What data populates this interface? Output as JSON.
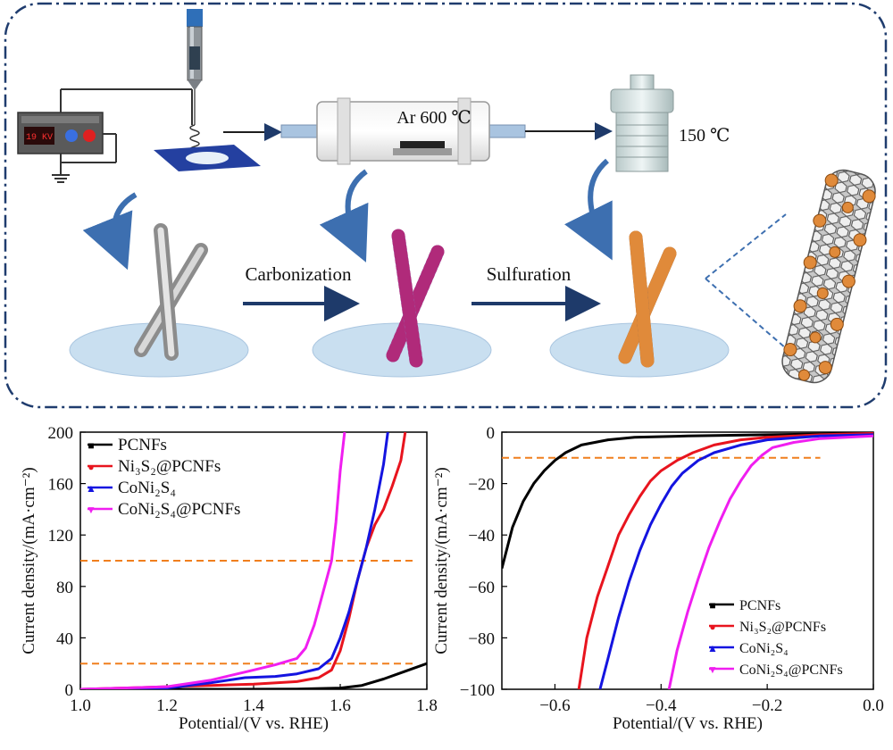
{
  "schematic": {
    "voltage_display": "19 KV",
    "furnace_label": "Ar 600 ℃",
    "autoclave_label": "150 ℃",
    "step1_label": "Carbonization",
    "step2_label": "Sulfuration",
    "colors": {
      "border": "#1f3c6e",
      "arrow": "#1e3a6a",
      "curved_arrow": "#3d6fb0",
      "disc": "#c9dff0",
      "pcnf_fiber": "#a9a9a9",
      "carbon_fiber": "#8a7bbd",
      "carbon_dots": "#b02a7a",
      "sulfide_fiber": "#8c6a55",
      "sulfide_particles": "#e08a3a"
    }
  },
  "chart_data": [
    {
      "type": "line",
      "panel": "left",
      "xlabel": "Potential/(V vs. RHE)",
      "ylabel": "Current density/(mA·cm⁻²)",
      "xlim": [
        1.0,
        1.8
      ],
      "ylim": [
        0,
        200
      ],
      "xticks": [
        "1.0",
        "1.2",
        "1.4",
        "1.6",
        "1.8"
      ],
      "yticks": [
        "0",
        "40",
        "80",
        "120",
        "160",
        "200"
      ],
      "legend_position": "top-left",
      "reference_lines": [
        {
          "y": 20,
          "x_range": [
            1.0,
            1.77
          ],
          "color": "#f07f1e"
        },
        {
          "y": 100,
          "x_range": [
            1.0,
            1.77
          ],
          "color": "#f07f1e"
        }
      ],
      "series": [
        {
          "name": "PCNFs",
          "color": "#000000",
          "marker": "■",
          "points": [
            [
              1.0,
              0
            ],
            [
              1.3,
              0
            ],
            [
              1.5,
              0.2
            ],
            [
              1.6,
              1
            ],
            [
              1.65,
              3
            ],
            [
              1.7,
              8
            ],
            [
              1.75,
              14
            ],
            [
              1.8,
              20
            ]
          ]
        },
        {
          "name": "Ni₃S₂@PCNFs",
          "color": "#e8141e",
          "marker": "●",
          "points": [
            [
              1.0,
              0
            ],
            [
              1.1,
              1
            ],
            [
              1.2,
              2
            ],
            [
              1.3,
              3
            ],
            [
              1.4,
              4
            ],
            [
              1.5,
              6
            ],
            [
              1.55,
              9
            ],
            [
              1.58,
              15
            ],
            [
              1.6,
              30
            ],
            [
              1.62,
              55
            ],
            [
              1.64,
              85
            ],
            [
              1.66,
              110
            ],
            [
              1.68,
              128
            ],
            [
              1.7,
              140
            ],
            [
              1.72,
              158
            ],
            [
              1.74,
              178
            ],
            [
              1.75,
              200
            ]
          ]
        },
        {
          "name": "CoNi₂S₄",
          "color": "#1414e0",
          "marker": "▲",
          "points": [
            [
              1.0,
              0
            ],
            [
              1.2,
              1
            ],
            [
              1.3,
              5
            ],
            [
              1.38,
              9
            ],
            [
              1.45,
              10
            ],
            [
              1.5,
              12
            ],
            [
              1.55,
              16
            ],
            [
              1.58,
              24
            ],
            [
              1.6,
              40
            ],
            [
              1.62,
              60
            ],
            [
              1.64,
              85
            ],
            [
              1.66,
              110
            ],
            [
              1.68,
              140
            ],
            [
              1.7,
              175
            ],
            [
              1.71,
              200
            ]
          ]
        },
        {
          "name": "CoNi₂S₄@PCNFs",
          "color": "#f01ef0",
          "marker": "▼",
          "points": [
            [
              1.0,
              0
            ],
            [
              1.1,
              1
            ],
            [
              1.2,
              2
            ],
            [
              1.3,
              7
            ],
            [
              1.4,
              15
            ],
            [
              1.45,
              19
            ],
            [
              1.5,
              24
            ],
            [
              1.52,
              32
            ],
            [
              1.54,
              50
            ],
            [
              1.56,
              75
            ],
            [
              1.58,
              100
            ],
            [
              1.59,
              130
            ],
            [
              1.6,
              170
            ],
            [
              1.61,
              200
            ]
          ]
        }
      ]
    },
    {
      "type": "line",
      "panel": "right",
      "xlabel": "Potential/(V vs. RHE)",
      "ylabel": "Current density/(mA·cm⁻²)",
      "xlim": [
        -0.7,
        0.0
      ],
      "ylim": [
        -100,
        0
      ],
      "xticks": [
        "−0.6",
        "−0.4",
        "−0.2",
        "0.0"
      ],
      "yticks": [
        "0",
        "−20",
        "−40",
        "−60",
        "−80",
        "−100"
      ],
      "legend_position": "bottom-right",
      "reference_lines": [
        {
          "y": -10,
          "x_range": [
            -0.7,
            -0.1
          ],
          "color": "#f07f1e"
        }
      ],
      "series": [
        {
          "name": "PCNFs",
          "color": "#000000",
          "marker": "■",
          "points": [
            [
              -0.7,
              -53
            ],
            [
              -0.68,
              -37
            ],
            [
              -0.66,
              -27
            ],
            [
              -0.64,
              -20
            ],
            [
              -0.62,
              -15
            ],
            [
              -0.6,
              -11
            ],
            [
              -0.58,
              -8
            ],
            [
              -0.55,
              -5
            ],
            [
              -0.5,
              -3
            ],
            [
              -0.45,
              -2
            ],
            [
              -0.35,
              -1.5
            ],
            [
              -0.2,
              -1
            ],
            [
              0,
              -0.5
            ]
          ]
        },
        {
          "name": "Ni₃S₂@PCNFs",
          "color": "#e8141e",
          "marker": "●",
          "points": [
            [
              -0.555,
              -100
            ],
            [
              -0.54,
              -80
            ],
            [
              -0.52,
              -64
            ],
            [
              -0.5,
              -52
            ],
            [
              -0.48,
              -40
            ],
            [
              -0.46,
              -32
            ],
            [
              -0.44,
              -25
            ],
            [
              -0.42,
              -19
            ],
            [
              -0.4,
              -15
            ],
            [
              -0.37,
              -11
            ],
            [
              -0.34,
              -8
            ],
            [
              -0.3,
              -5
            ],
            [
              -0.25,
              -3
            ],
            [
              -0.2,
              -2
            ],
            [
              -0.1,
              -1
            ],
            [
              0,
              -0.5
            ]
          ]
        },
        {
          "name": "CoNi₂S₄",
          "color": "#1414e0",
          "marker": "▲",
          "points": [
            [
              -0.515,
              -100
            ],
            [
              -0.5,
              -88
            ],
            [
              -0.48,
              -72
            ],
            [
              -0.46,
              -58
            ],
            [
              -0.44,
              -46
            ],
            [
              -0.42,
              -36
            ],
            [
              -0.4,
              -28
            ],
            [
              -0.38,
              -21
            ],
            [
              -0.36,
              -16
            ],
            [
              -0.33,
              -11
            ],
            [
              -0.3,
              -8
            ],
            [
              -0.25,
              -5
            ],
            [
              -0.2,
              -3
            ],
            [
              -0.1,
              -1.5
            ],
            [
              0,
              -1
            ]
          ]
        },
        {
          "name": "CoNi₂S₄@PCNFs",
          "color": "#f01ef0",
          "marker": "▼",
          "points": [
            [
              -0.385,
              -100
            ],
            [
              -0.37,
              -85
            ],
            [
              -0.35,
              -70
            ],
            [
              -0.33,
              -57
            ],
            [
              -0.31,
              -45
            ],
            [
              -0.29,
              -35
            ],
            [
              -0.27,
              -26
            ],
            [
              -0.25,
              -19
            ],
            [
              -0.23,
              -13
            ],
            [
              -0.21,
              -9
            ],
            [
              -0.19,
              -6
            ],
            [
              -0.15,
              -4
            ],
            [
              -0.1,
              -2.5
            ],
            [
              0,
              -1.5
            ]
          ]
        }
      ]
    }
  ]
}
